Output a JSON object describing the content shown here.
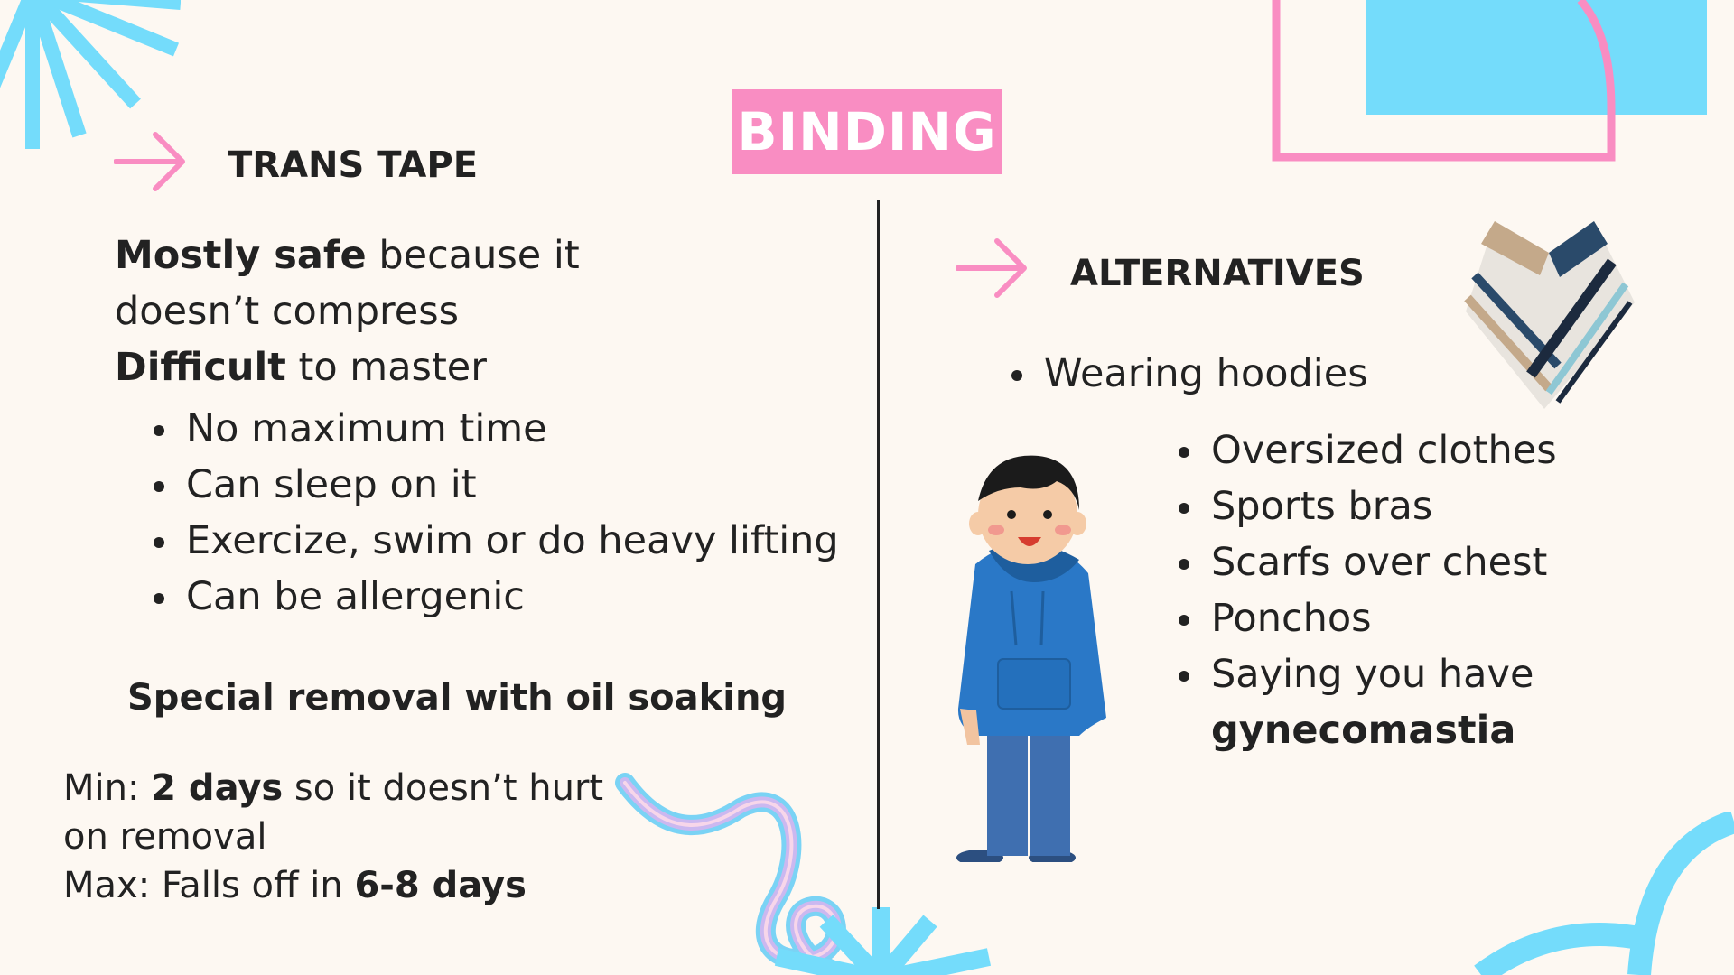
{
  "title": "BINDING",
  "left": {
    "heading": "TRANS TAPE",
    "line1_bold": "Mostly safe",
    "line1_rest": " because it doesn’t compress",
    "line2_bold": "Difficult",
    "line2_rest": " to master",
    "bullets": [
      "No maximum time",
      "Can sleep on it",
      "Exercize, swim or do heavy lifting",
      "Can be allergenic"
    ],
    "special": "Special removal with oil soaking",
    "min_label": "Min: ",
    "min_bold": "2 days",
    "min_rest": " so it doesn’t hurt on removal",
    "max_label": "Max: Falls off in ",
    "max_bold": "6-8 days"
  },
  "right": {
    "heading": "ALTERNATIVES",
    "bullet_top": "Wearing hoodies",
    "bullets": [
      "Oversized clothes",
      "Sports bras",
      "Scarfs over chest",
      "Ponchos"
    ],
    "last_bullet_text": "Saying you have",
    "last_bullet_bold": "gynecomastia"
  },
  "colors": {
    "pink": "#f98dc2",
    "cyan": "#74dcfb",
    "background": "#fdf8f2"
  },
  "icons": [
    "arrow-right-icon",
    "hoodie-boy-illustration",
    "poncho-illustration",
    "sunburst-decoration",
    "squiggle-decoration"
  ]
}
